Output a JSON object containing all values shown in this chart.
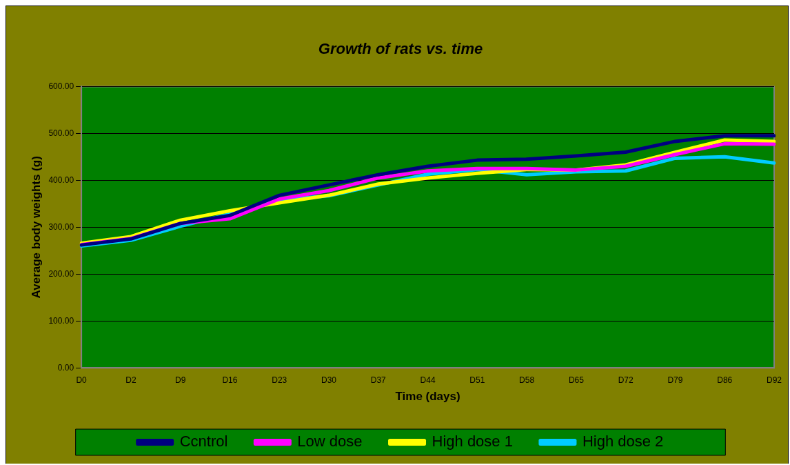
{
  "chart_data": {
    "type": "line",
    "title": "Growth of rats vs. time",
    "xlabel": "Time (days)",
    "ylabel": "Average body weights (g)",
    "categories": [
      "D0",
      "D2",
      "D9",
      "D16",
      "D23",
      "D30",
      "D37",
      "D44",
      "D51",
      "D58",
      "D65",
      "D72",
      "D79",
      "D86",
      "D92"
    ],
    "series": [
      {
        "name": "Ccntrol",
        "color": "#000080",
        "values": [
          262,
          275,
          308,
          325,
          368,
          390,
          412,
          430,
          443,
          445,
          452,
          460,
          483,
          495,
          495
        ]
      },
      {
        "name": "Low dose",
        "color": "#ff00ff",
        "values": [
          263,
          276,
          308,
          318,
          360,
          378,
          405,
          420,
          425,
          425,
          422,
          430,
          455,
          478,
          477
        ]
      },
      {
        "name": "High dose 1",
        "color": "#ffff00",
        "values": [
          266,
          280,
          315,
          335,
          352,
          368,
          392,
          405,
          415,
          423,
          422,
          433,
          460,
          486,
          483
        ]
      },
      {
        "name": "High dose 2",
        "color": "#00ccff",
        "values": [
          260,
          272,
          302,
          328,
          358,
          367,
          390,
          413,
          423,
          412,
          418,
          420,
          447,
          450,
          437
        ]
      }
    ],
    "ylim": [
      0,
      600
    ],
    "yticks": [
      {
        "value": 0,
        "label": "0.00"
      },
      {
        "value": 100,
        "label": "100.00"
      },
      {
        "value": 200,
        "label": "200.00"
      },
      {
        "value": 300,
        "label": "300.00"
      },
      {
        "value": 400,
        "label": "400.00"
      },
      {
        "value": 500,
        "label": "500.00"
      },
      {
        "value": 600,
        "label": "600.00"
      }
    ],
    "grid": "y",
    "legend": "bottom",
    "marker": "none",
    "line_style": "solid"
  }
}
